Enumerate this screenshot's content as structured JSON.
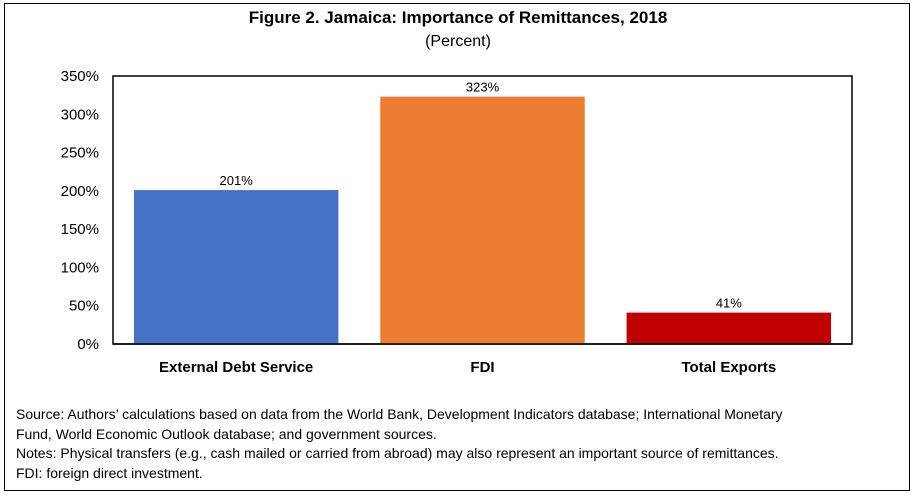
{
  "figure": {
    "title": "Figure 2. Jamaica: Importance of Remittances, 2018",
    "subtitle": "(Percent)"
  },
  "chart_data": {
    "type": "bar",
    "title": "Figure 2. Jamaica: Importance of Remittances, 2018",
    "subtitle": "(Percent)",
    "categories": [
      "External Debt Service",
      "FDI",
      "Total Exports"
    ],
    "values": [
      201,
      323,
      41
    ],
    "data_labels": [
      "201%",
      "323%",
      "41%"
    ],
    "bar_colors": [
      "#4472C4",
      "#ED7D31",
      "#C00000"
    ],
    "ylim": [
      0,
      350
    ],
    "yticks": [
      0,
      50,
      100,
      150,
      200,
      250,
      300,
      350
    ],
    "ytick_labels": [
      "0%",
      "50%",
      "100%",
      "150%",
      "200%",
      "250%",
      "300%",
      "350%"
    ],
    "xlabel": "",
    "ylabel": "",
    "grid": false,
    "legend": "none"
  },
  "notes": {
    "source_line1": "Source: Authors’ calculations based on data from the World Bank, Development Indicators database; International Monetary",
    "source_line2": "Fund, World Economic Outlook database; and government sources.",
    "notes_line": "Notes: Physical transfers (e.g., cash mailed or carried from abroad) may also represent an important source of remittances.",
    "fdi_line": "FDI: foreign direct investment."
  }
}
